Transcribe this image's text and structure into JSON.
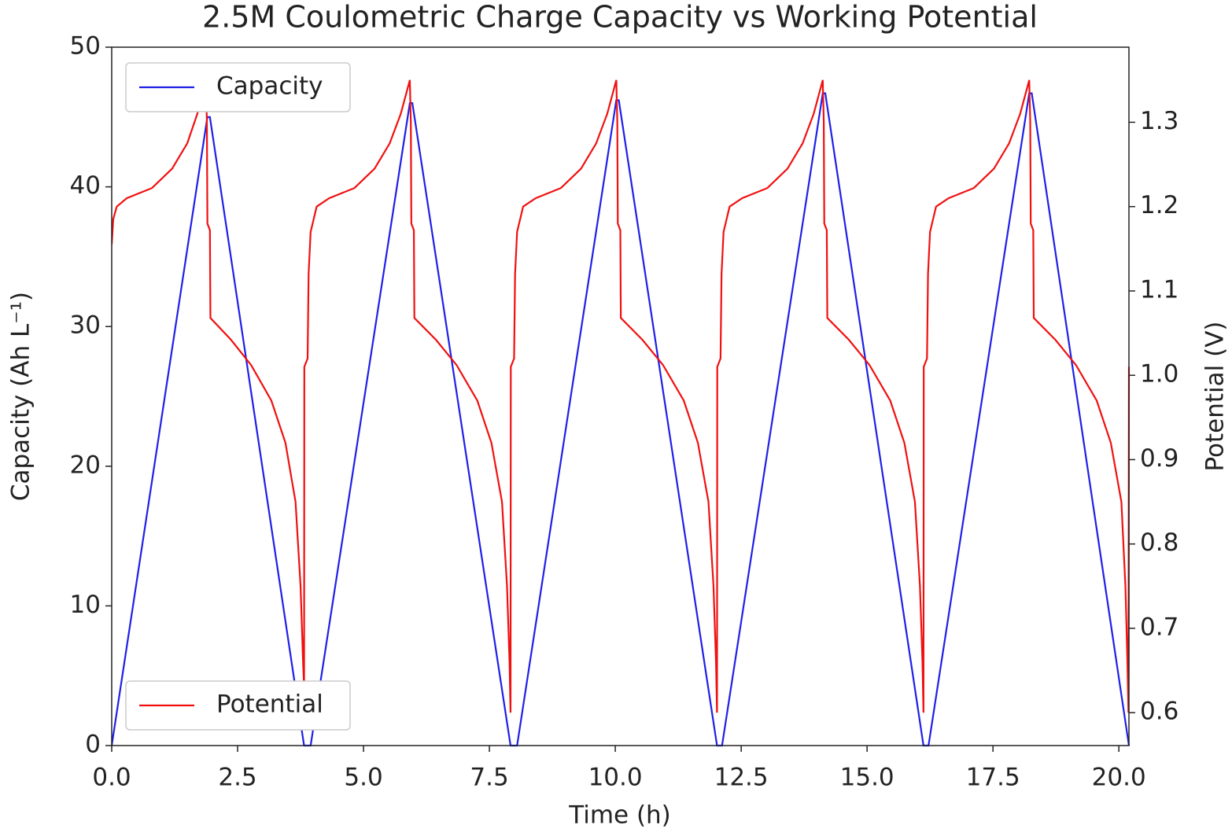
{
  "chart_data": {
    "type": "line",
    "title": "2.5M Coulometric Charge Capacity vs Working Potential",
    "xlabel": "Time (h)",
    "ylabel": "Capacity (Ah L⁻¹)",
    "y2label": "Potential (V)",
    "xlim": [
      0,
      20.2
    ],
    "ylim": [
      0,
      50
    ],
    "y2lim": [
      0.561,
      1.389
    ],
    "xticks": [
      {
        "value": 0,
        "label": "0.0"
      },
      2.5,
      {
        "value": 5,
        "label": "5.0"
      },
      7.5,
      {
        "value": 10,
        "label": "10.0"
      },
      12.5,
      {
        "value": 15,
        "label": "15.0"
      },
      17.5,
      {
        "value": 20,
        "label": "20.0"
      }
    ],
    "yticks": [
      0,
      10,
      20,
      30,
      40,
      50
    ],
    "y2ticks": [
      0.6,
      0.7,
      0.8,
      0.9,
      {
        "value": 1,
        "label": "1.0"
      },
      1.1,
      1.2,
      1.3
    ],
    "grid": false,
    "series": [
      {
        "name": "Capacity",
        "color": "#1f1fe8",
        "legend": "upper left",
        "x": [
          0,
          1.9,
          1.95,
          3.82,
          3.95,
          5.92,
          5.97,
          7.92,
          8.05,
          10.02,
          10.07,
          12.02,
          12.12,
          14.12,
          14.17,
          16.12,
          16.22,
          18.22,
          18.27,
          20.2
        ],
        "values": [
          0,
          45,
          45,
          0,
          0,
          46,
          46,
          0,
          0,
          46.2,
          46.2,
          0,
          0,
          46.7,
          46.7,
          0,
          0,
          46.7,
          46.7,
          0
        ]
      },
      {
        "name": "Potential",
        "color": "#f01010",
        "axis": "y2",
        "legend": "lower left",
        "x": [
          0,
          0.03,
          0.1,
          0.3,
          0.8,
          1.2,
          1.5,
          1.7,
          1.87,
          1.89,
          1.9,
          1.95,
          1.96,
          2.37,
          2.77,
          3.17,
          3.45,
          3.65,
          3.75,
          3.8,
          3.82,
          3.825,
          3.89,
          3.91,
          3.95,
          4.07,
          4.32,
          4.82,
          5.22,
          5.52,
          5.74,
          5.92,
          5.94,
          5.95,
          6.0,
          6.01,
          6.44,
          6.85,
          7.26,
          7.54,
          7.75,
          7.85,
          7.9,
          7.92,
          7.925,
          7.99,
          8.01,
          8.05,
          8.17,
          8.42,
          8.92,
          9.32,
          9.62,
          9.84,
          10.02,
          10.04,
          10.05,
          10.1,
          10.11,
          10.54,
          10.95,
          11.36,
          11.64,
          11.85,
          11.95,
          12.0,
          12.02,
          12.025,
          12.09,
          12.11,
          12.15,
          12.27,
          12.52,
          13.02,
          13.42,
          13.72,
          13.94,
          14.12,
          14.14,
          14.15,
          14.2,
          14.21,
          14.64,
          15.05,
          15.46,
          15.74,
          15.95,
          16.05,
          16.1,
          16.12,
          16.125,
          16.19,
          16.21,
          16.25,
          16.37,
          16.62,
          17.12,
          17.52,
          17.82,
          18.04,
          18.22,
          18.24,
          18.25,
          18.3,
          18.31,
          18.74,
          19.15,
          19.56,
          19.84,
          20.05,
          20.13,
          20.17,
          20.19,
          20.2
        ],
        "values": [
          1.155,
          1.185,
          1.2,
          1.21,
          1.222,
          1.245,
          1.275,
          1.31,
          1.35,
          1.3,
          1.18,
          1.172,
          1.068,
          1.042,
          1.012,
          0.97,
          0.92,
          0.85,
          0.75,
          0.66,
          0.63,
          1.01,
          1.02,
          1.12,
          1.17,
          1.2,
          1.21,
          1.222,
          1.245,
          1.275,
          1.31,
          1.35,
          1.3,
          1.18,
          1.172,
          1.068,
          1.042,
          1.012,
          0.97,
          0.92,
          0.85,
          0.75,
          0.66,
          0.6,
          1.01,
          1.02,
          1.12,
          1.17,
          1.2,
          1.21,
          1.222,
          1.245,
          1.275,
          1.31,
          1.35,
          1.3,
          1.18,
          1.172,
          1.068,
          1.042,
          1.012,
          0.97,
          0.92,
          0.85,
          0.75,
          0.66,
          0.6,
          1.01,
          1.02,
          1.12,
          1.17,
          1.2,
          1.21,
          1.222,
          1.245,
          1.275,
          1.31,
          1.35,
          1.3,
          1.18,
          1.172,
          1.068,
          1.042,
          1.012,
          0.97,
          0.92,
          0.85,
          0.75,
          0.66,
          0.6,
          1.01,
          1.02,
          1.12,
          1.17,
          1.2,
          1.21,
          1.222,
          1.245,
          1.275,
          1.31,
          1.35,
          1.3,
          1.18,
          1.172,
          1.068,
          1.042,
          1.012,
          0.97,
          0.92,
          0.85,
          0.75,
          0.66,
          0.6,
          1.01
        ]
      }
    ]
  }
}
